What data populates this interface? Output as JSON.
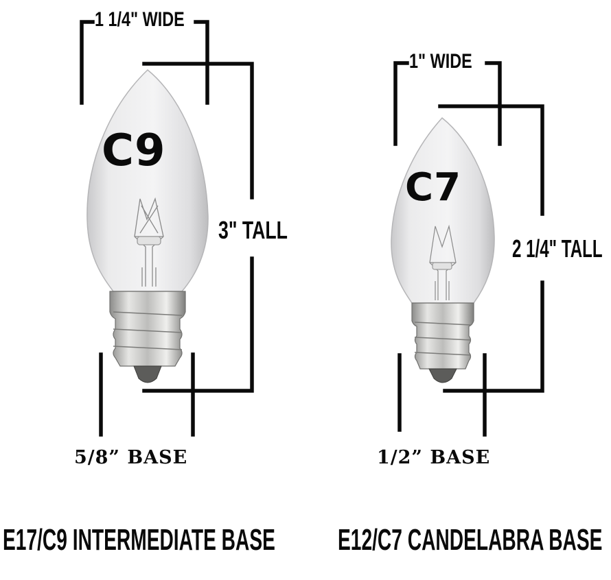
{
  "bulbs": [
    {
      "name": "C9",
      "width_label": "1 1/4\" WIDE",
      "height_label": "3\" TALL",
      "base_label": "5/8” BASE",
      "type_label": "E17/C9 INTERMEDIATE BASE"
    },
    {
      "name": "C7",
      "width_label": "1\" WIDE",
      "height_label": "2 1/4\" TALL",
      "base_label": "1/2” BASE",
      "type_label": "E12/C7 CANDELABRA BASE"
    }
  ],
  "colors": {
    "line": "#0a0a0a",
    "glass": "#e9e9ea",
    "glass_edge": "#b9b9bb",
    "base_metal": "#c8c8c6",
    "base_dark": "#7d7d7b"
  }
}
